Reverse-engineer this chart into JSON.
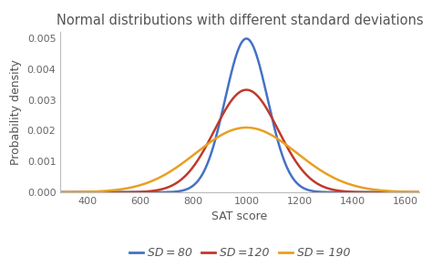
{
  "title": "Normal distributions with different standard deviations",
  "xlabel": "SAT score",
  "ylabel": "Probability density",
  "mean": 1000,
  "distributions": [
    {
      "sd": 80,
      "color": "#4472C4",
      "label": "SD = 80"
    },
    {
      "sd": 120,
      "color": "#C0392B",
      "label": "SD =120"
    },
    {
      "sd": 190,
      "color": "#E8A020",
      "label": "SD = 190"
    }
  ],
  "xlim": [
    300,
    1650
  ],
  "ylim": [
    0,
    0.0052
  ],
  "xticks": [
    400,
    600,
    800,
    1000,
    1200,
    1400,
    1600
  ],
  "yticks": [
    0.0,
    0.001,
    0.002,
    0.003,
    0.004,
    0.005
  ],
  "bg_color": "#ffffff",
  "title_fontsize": 10.5,
  "axis_label_fontsize": 9,
  "tick_fontsize": 8,
  "legend_fontsize": 9
}
